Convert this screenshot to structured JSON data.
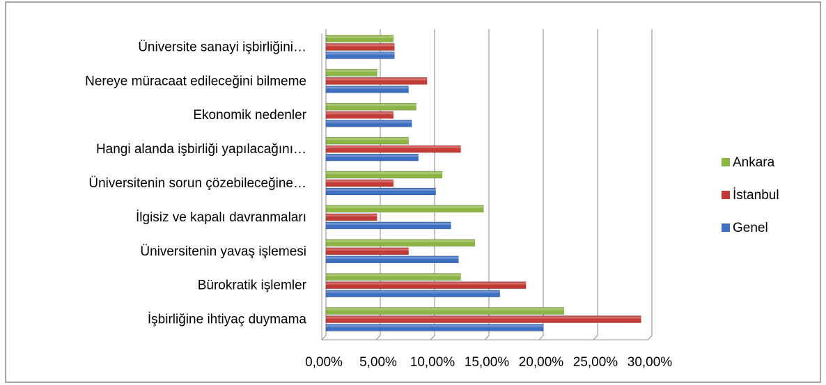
{
  "chart_data": {
    "type": "bar",
    "orientation": "horizontal",
    "categories": [
      "İşbirliğine ihtiyaç duymama",
      "Bürokratik işlemler",
      "Üniversitenin yavaş işlemesi",
      "İlgisiz ve kapalı davranmaları",
      "Üniversitenin sorun çözebileceğine…",
      "Hangi alanda işbirliği yapılacağını…",
      "Ekonomik nedenler",
      "Nereye müracaat edileceğini bilmeme",
      "Üniversite sanayi işbirliğini…"
    ],
    "series": [
      {
        "name": "Genel",
        "color": "#3f6fc0",
        "values": [
          20.0,
          16.0,
          12.2,
          11.5,
          10.1,
          8.5,
          7.9,
          7.6,
          6.3
        ]
      },
      {
        "name": "İstanbul",
        "color": "#c23b37",
        "values": [
          29.0,
          18.4,
          7.6,
          4.7,
          6.2,
          12.4,
          6.2,
          9.3,
          6.3
        ]
      },
      {
        "name": "Ankara",
        "color": "#8db545",
        "values": [
          21.9,
          12.4,
          13.7,
          14.5,
          10.7,
          7.6,
          8.3,
          4.7,
          6.2
        ]
      }
    ],
    "xlim": [
      0,
      30
    ],
    "xticks": [
      {
        "value": 0,
        "label": "0,00%"
      },
      {
        "value": 5,
        "label": "5,00%"
      },
      {
        "value": 10,
        "label": "10,00%"
      },
      {
        "value": 15,
        "label": "15,00%"
      },
      {
        "value": 20,
        "label": "20,00%"
      },
      {
        "value": 25,
        "label": "25,00%"
      },
      {
        "value": 30,
        "label": "30,00%"
      }
    ],
    "grid": true,
    "legend": "right"
  }
}
